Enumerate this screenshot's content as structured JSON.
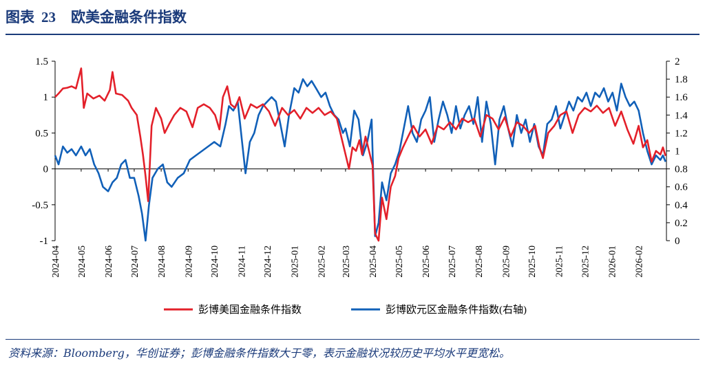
{
  "figure": {
    "label": "图表",
    "number": "23",
    "title": "欧美金融条件指数"
  },
  "source_note": "资料来源：Bloomberg，华创证券；彭博金融条件指数大于零，表示金融状况较历史平均水平更宽松。",
  "colors": {
    "us": "#e3202a",
    "eu": "#1160b8",
    "header": "#1a3a7a"
  },
  "chart_data": {
    "type": "line",
    "legend_position": "bottom",
    "x_tick_labels": [
      "2024-04",
      "2024-05",
      "2024-06",
      "2024-07",
      "2024-08",
      "2024-09",
      "2024-10",
      "2024-11",
      "2024-12",
      "2025-01",
      "2025-02",
      "2025-03",
      "2025-04",
      "2025-05",
      "2025-06",
      "2025-07",
      "2025-08",
      "2025-09",
      "2025-10",
      "2025-11",
      "2025-12",
      "2026-01",
      "2026-02"
    ],
    "x_range": [
      "2024-04-01",
      "2026-03-05"
    ],
    "y_left": {
      "min": -1,
      "max": 1.5,
      "ticks": [
        "-1",
        "-0.5",
        "0",
        "0.5",
        "1",
        "1.5"
      ]
    },
    "y_right": {
      "min": 0,
      "max": 2,
      "ticks": [
        "0",
        "0.2",
        "0.4",
        "0.6",
        "0.8",
        "1",
        "1.2",
        "1.4",
        "1.6",
        "1.8",
        "2"
      ]
    },
    "series": [
      {
        "name": "彭博美国金融条件指数",
        "axis": "left",
        "points": [
          [
            "2024-04-01",
            1.0
          ],
          [
            "2024-04-05",
            1.05
          ],
          [
            "2024-04-10",
            1.12
          ],
          [
            "2024-04-15",
            1.13
          ],
          [
            "2024-04-20",
            1.15
          ],
          [
            "2024-04-25",
            1.12
          ],
          [
            "2024-05-01",
            1.4
          ],
          [
            "2024-05-04",
            0.85
          ],
          [
            "2024-05-08",
            1.05
          ],
          [
            "2024-05-15",
            0.98
          ],
          [
            "2024-05-22",
            1.02
          ],
          [
            "2024-05-28",
            0.95
          ],
          [
            "2024-06-03",
            1.1
          ],
          [
            "2024-06-06",
            1.35
          ],
          [
            "2024-06-10",
            1.05
          ],
          [
            "2024-06-17",
            1.03
          ],
          [
            "2024-06-24",
            0.95
          ],
          [
            "2024-06-28",
            0.85
          ],
          [
            "2024-07-04",
            0.75
          ],
          [
            "2024-07-08",
            0.45
          ],
          [
            "2024-07-11",
            0.2
          ],
          [
            "2024-07-14",
            -0.1
          ],
          [
            "2024-07-17",
            -0.45
          ],
          [
            "2024-07-21",
            0.6
          ],
          [
            "2024-07-26",
            0.85
          ],
          [
            "2024-08-01",
            0.7
          ],
          [
            "2024-08-05",
            0.5
          ],
          [
            "2024-08-10",
            0.62
          ],
          [
            "2024-08-16",
            0.75
          ],
          [
            "2024-08-23",
            0.85
          ],
          [
            "2024-08-30",
            0.8
          ],
          [
            "2024-09-06",
            0.58
          ],
          [
            "2024-09-12",
            0.85
          ],
          [
            "2024-09-19",
            0.9
          ],
          [
            "2024-09-26",
            0.85
          ],
          [
            "2024-10-02",
            0.75
          ],
          [
            "2024-10-07",
            0.55
          ],
          [
            "2024-10-11",
            1.0
          ],
          [
            "2024-10-16",
            1.15
          ],
          [
            "2024-10-20",
            0.9
          ],
          [
            "2024-10-25",
            0.85
          ],
          [
            "2024-10-30",
            1.0
          ],
          [
            "2024-11-05",
            0.7
          ],
          [
            "2024-11-12",
            0.9
          ],
          [
            "2024-11-19",
            0.85
          ],
          [
            "2024-11-26",
            0.9
          ],
          [
            "2024-12-03",
            0.8
          ],
          [
            "2024-12-10",
            0.6
          ],
          [
            "2024-12-18",
            0.85
          ],
          [
            "2024-12-25",
            0.75
          ],
          [
            "2025-01-01",
            0.82
          ],
          [
            "2025-01-08",
            0.7
          ],
          [
            "2025-01-15",
            0.85
          ],
          [
            "2025-01-22",
            0.78
          ],
          [
            "2025-01-29",
            0.85
          ],
          [
            "2025-02-05",
            0.75
          ],
          [
            "2025-02-12",
            0.8
          ],
          [
            "2025-02-19",
            0.7
          ],
          [
            "2025-02-24",
            0.45
          ],
          [
            "2025-03-01",
            0.2
          ],
          [
            "2025-03-05",
            0.0
          ],
          [
            "2025-03-09",
            0.3
          ],
          [
            "2025-03-13",
            0.25
          ],
          [
            "2025-03-17",
            0.4
          ],
          [
            "2025-03-20",
            0.2
          ],
          [
            "2025-03-24",
            0.45
          ],
          [
            "2025-03-28",
            0.25
          ],
          [
            "2025-04-01",
            0.05
          ],
          [
            "2025-04-04",
            -0.9
          ],
          [
            "2025-04-08",
            -1.0
          ],
          [
            "2025-04-12",
            -0.4
          ],
          [
            "2025-04-17",
            -0.7
          ],
          [
            "2025-04-22",
            -0.25
          ],
          [
            "2025-04-27",
            -0.1
          ],
          [
            "2025-05-01",
            0.15
          ],
          [
            "2025-05-06",
            0.3
          ],
          [
            "2025-05-12",
            0.45
          ],
          [
            "2025-05-18",
            0.6
          ],
          [
            "2025-05-25",
            0.45
          ],
          [
            "2025-06-01",
            0.55
          ],
          [
            "2025-06-08",
            0.35
          ],
          [
            "2025-06-15",
            0.6
          ],
          [
            "2025-06-22",
            0.55
          ],
          [
            "2025-06-29",
            0.65
          ],
          [
            "2025-07-06",
            0.55
          ],
          [
            "2025-07-13",
            0.7
          ],
          [
            "2025-07-20",
            0.65
          ],
          [
            "2025-07-27",
            0.7
          ],
          [
            "2025-08-03",
            0.45
          ],
          [
            "2025-08-10",
            0.75
          ],
          [
            "2025-08-17",
            0.7
          ],
          [
            "2025-08-24",
            0.55
          ],
          [
            "2025-08-31",
            0.72
          ],
          [
            "2025-09-07",
            0.45
          ],
          [
            "2025-09-14",
            0.65
          ],
          [
            "2025-09-21",
            0.6
          ],
          [
            "2025-09-28",
            0.5
          ],
          [
            "2025-10-05",
            0.6
          ],
          [
            "2025-10-10",
            0.3
          ],
          [
            "2025-10-14",
            0.15
          ],
          [
            "2025-10-20",
            0.5
          ],
          [
            "2025-10-27",
            0.6
          ],
          [
            "2025-11-03",
            0.75
          ],
          [
            "2025-11-10",
            0.8
          ],
          [
            "2025-11-17",
            0.5
          ],
          [
            "2025-11-24",
            0.75
          ],
          [
            "2025-12-01",
            0.85
          ],
          [
            "2025-12-08",
            0.8
          ],
          [
            "2025-12-15",
            0.88
          ],
          [
            "2025-12-22",
            0.78
          ],
          [
            "2025-12-29",
            0.85
          ],
          [
            "2026-01-05",
            0.6
          ],
          [
            "2026-01-12",
            0.8
          ],
          [
            "2026-01-19",
            0.55
          ],
          [
            "2026-01-26",
            0.35
          ],
          [
            "2026-02-01",
            0.6
          ],
          [
            "2026-02-06",
            0.3
          ],
          [
            "2026-02-11",
            0.4
          ],
          [
            "2026-02-16",
            0.1
          ],
          [
            "2026-02-21",
            0.25
          ],
          [
            "2026-02-26",
            0.2
          ],
          [
            "2026-03-01",
            0.3
          ],
          [
            "2026-03-04",
            0.18
          ]
        ]
      },
      {
        "name": "彭博欧元区金融条件指数(右轴)",
        "axis": "right",
        "points": [
          [
            "2024-04-01",
            0.95
          ],
          [
            "2024-04-05",
            0.85
          ],
          [
            "2024-04-10",
            1.05
          ],
          [
            "2024-04-15",
            0.98
          ],
          [
            "2024-04-20",
            1.02
          ],
          [
            "2024-04-25",
            0.95
          ],
          [
            "2024-05-01",
            1.05
          ],
          [
            "2024-05-06",
            0.95
          ],
          [
            "2024-05-11",
            1.02
          ],
          [
            "2024-05-16",
            0.85
          ],
          [
            "2024-05-21",
            0.75
          ],
          [
            "2024-05-26",
            0.6
          ],
          [
            "2024-06-01",
            0.55
          ],
          [
            "2024-06-06",
            0.65
          ],
          [
            "2024-06-11",
            0.7
          ],
          [
            "2024-06-16",
            0.85
          ],
          [
            "2024-06-21",
            0.9
          ],
          [
            "2024-06-26",
            0.7
          ],
          [
            "2024-07-01",
            0.7
          ],
          [
            "2024-07-06",
            0.5
          ],
          [
            "2024-07-10",
            0.3
          ],
          [
            "2024-07-14",
            0.0
          ],
          [
            "2024-07-18",
            0.4
          ],
          [
            "2024-07-22",
            0.7
          ],
          [
            "2024-07-28",
            0.8
          ],
          [
            "2024-08-03",
            0.85
          ],
          [
            "2024-08-08",
            0.65
          ],
          [
            "2024-08-13",
            0.6
          ],
          [
            "2024-08-20",
            0.7
          ],
          [
            "2024-08-27",
            0.75
          ],
          [
            "2024-09-03",
            0.9
          ],
          [
            "2024-09-10",
            0.95
          ],
          [
            "2024-09-17",
            1.0
          ],
          [
            "2024-09-24",
            1.05
          ],
          [
            "2024-10-01",
            1.1
          ],
          [
            "2024-10-08",
            1.05
          ],
          [
            "2024-10-14",
            1.3
          ],
          [
            "2024-10-18",
            1.5
          ],
          [
            "2024-10-23",
            1.45
          ],
          [
            "2024-10-28",
            1.55
          ],
          [
            "2024-11-02",
            1.1
          ],
          [
            "2024-11-06",
            0.75
          ],
          [
            "2024-11-11",
            1.1
          ],
          [
            "2024-11-16",
            1.2
          ],
          [
            "2024-11-21",
            1.4
          ],
          [
            "2024-11-26",
            1.5
          ],
          [
            "2024-12-01",
            1.55
          ],
          [
            "2024-12-06",
            1.6
          ],
          [
            "2024-12-11",
            1.55
          ],
          [
            "2024-12-16",
            1.3
          ],
          [
            "2024-12-21",
            1.05
          ],
          [
            "2024-12-26",
            1.4
          ],
          [
            "2025-01-01",
            1.7
          ],
          [
            "2025-01-06",
            1.65
          ],
          [
            "2025-01-11",
            1.8
          ],
          [
            "2025-01-16",
            1.72
          ],
          [
            "2025-01-21",
            1.78
          ],
          [
            "2025-01-26",
            1.7
          ],
          [
            "2025-02-01",
            1.6
          ],
          [
            "2025-02-06",
            1.65
          ],
          [
            "2025-02-11",
            1.5
          ],
          [
            "2025-02-16",
            1.4
          ],
          [
            "2025-02-21",
            1.35
          ],
          [
            "2025-02-26",
            1.2
          ],
          [
            "2025-03-01",
            1.25
          ],
          [
            "2025-03-06",
            1.05
          ],
          [
            "2025-03-11",
            1.45
          ],
          [
            "2025-03-16",
            1.35
          ],
          [
            "2025-03-21",
            0.95
          ],
          [
            "2025-03-26",
            1.1
          ],
          [
            "2025-03-31",
            1.35
          ],
          [
            "2025-04-04",
            0.05
          ],
          [
            "2025-04-08",
            0.2
          ],
          [
            "2025-04-12",
            0.65
          ],
          [
            "2025-04-17",
            0.45
          ],
          [
            "2025-04-22",
            0.75
          ],
          [
            "2025-04-27",
            0.85
          ],
          [
            "2025-05-02",
            1.0
          ],
          [
            "2025-05-07",
            1.25
          ],
          [
            "2025-05-12",
            1.5
          ],
          [
            "2025-05-17",
            1.2
          ],
          [
            "2025-05-22",
            1.1
          ],
          [
            "2025-05-27",
            1.35
          ],
          [
            "2025-06-01",
            1.45
          ],
          [
            "2025-06-06",
            1.6
          ],
          [
            "2025-06-11",
            1.1
          ],
          [
            "2025-06-16",
            1.35
          ],
          [
            "2025-06-21",
            1.55
          ],
          [
            "2025-06-26",
            1.4
          ],
          [
            "2025-07-01",
            1.2
          ],
          [
            "2025-07-06",
            1.5
          ],
          [
            "2025-07-11",
            1.25
          ],
          [
            "2025-07-16",
            1.4
          ],
          [
            "2025-07-21",
            1.5
          ],
          [
            "2025-07-26",
            1.3
          ],
          [
            "2025-07-31",
            1.6
          ],
          [
            "2025-08-05",
            1.1
          ],
          [
            "2025-08-10",
            1.55
          ],
          [
            "2025-08-15",
            1.3
          ],
          [
            "2025-08-20",
            0.85
          ],
          [
            "2025-08-25",
            1.35
          ],
          [
            "2025-08-30",
            1.5
          ],
          [
            "2025-09-04",
            1.25
          ],
          [
            "2025-09-09",
            1.05
          ],
          [
            "2025-09-14",
            1.4
          ],
          [
            "2025-09-19",
            1.2
          ],
          [
            "2025-09-24",
            1.35
          ],
          [
            "2025-09-29",
            1.1
          ],
          [
            "2025-10-04",
            1.3
          ],
          [
            "2025-10-09",
            1.05
          ],
          [
            "2025-10-14",
            0.95
          ],
          [
            "2025-10-19",
            1.3
          ],
          [
            "2025-10-24",
            1.35
          ],
          [
            "2025-10-29",
            1.5
          ],
          [
            "2025-11-03",
            1.25
          ],
          [
            "2025-11-08",
            1.4
          ],
          [
            "2025-11-13",
            1.55
          ],
          [
            "2025-11-18",
            1.45
          ],
          [
            "2025-11-23",
            1.6
          ],
          [
            "2025-11-28",
            1.55
          ],
          [
            "2025-12-03",
            1.65
          ],
          [
            "2025-12-08",
            1.5
          ],
          [
            "2025-12-13",
            1.65
          ],
          [
            "2025-12-18",
            1.6
          ],
          [
            "2025-12-23",
            1.7
          ],
          [
            "2025-12-28",
            1.55
          ],
          [
            "2026-01-02",
            1.65
          ],
          [
            "2026-01-07",
            1.45
          ],
          [
            "2026-01-12",
            1.75
          ],
          [
            "2026-01-17",
            1.6
          ],
          [
            "2026-01-22",
            1.5
          ],
          [
            "2026-01-27",
            1.55
          ],
          [
            "2026-02-01",
            1.45
          ],
          [
            "2026-02-06",
            1.2
          ],
          [
            "2026-02-11",
            1.0
          ],
          [
            "2026-02-16",
            0.85
          ],
          [
            "2026-02-21",
            0.95
          ],
          [
            "2026-02-26",
            0.9
          ],
          [
            "2026-03-01",
            0.95
          ],
          [
            "2026-03-04",
            0.88
          ]
        ]
      }
    ]
  }
}
